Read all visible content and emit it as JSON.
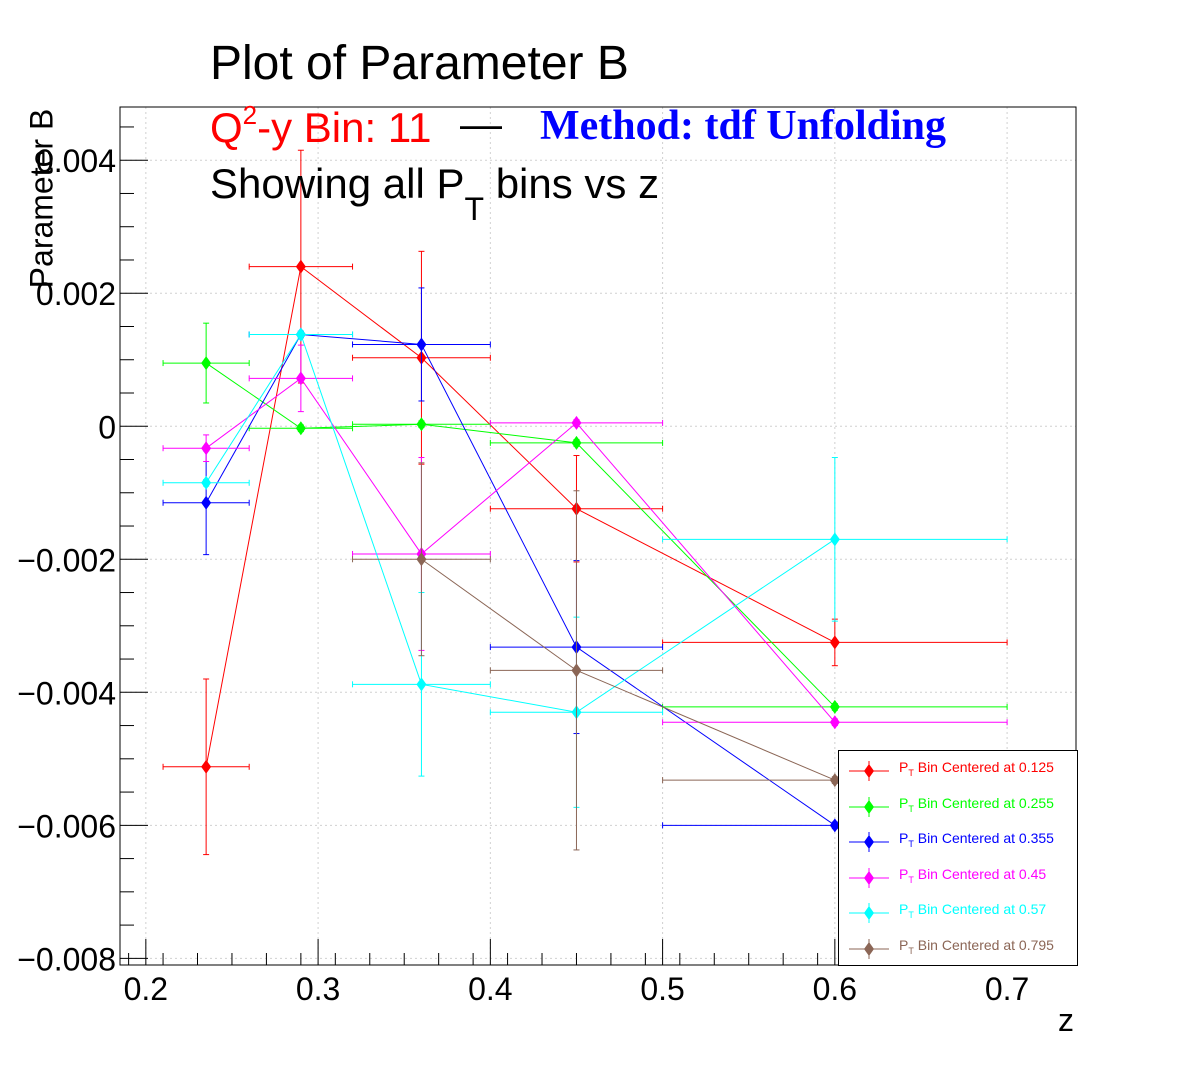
{
  "chart_data": {
    "type": "scatter",
    "title": "Plot of Parameter B",
    "subtitle_bin": "Q2-y Bin: 11",
    "subtitle_bin_parts": {
      "pre": "Q",
      "sup": "2",
      "post": "-y Bin: 11"
    },
    "subtitle_dash": "—",
    "subtitle_method": "Method: tdf Unfolding",
    "subtitle_line2": {
      "pre": "Showing all P",
      "sub": "T",
      "post": " bins vs z"
    },
    "xlabel": "z",
    "ylabel": "Parameter B",
    "xlim": [
      0.185,
      0.74
    ],
    "ylim": [
      -0.0081,
      0.0048
    ],
    "xticks": [
      0.2,
      0.3,
      0.4,
      0.5,
      0.6,
      0.7
    ],
    "xtick_labels": [
      "0.2",
      "0.3",
      "0.4",
      "0.5",
      "0.6",
      "0.7"
    ],
    "yticks": [
      -0.008,
      -0.006,
      -0.004,
      -0.002,
      0,
      0.002,
      0.004
    ],
    "ytick_labels": [
      "−0.008",
      "−0.006",
      "−0.004",
      "−0.002",
      "0",
      "0.002",
      "0.004"
    ],
    "grid": true,
    "legend_position": "bottom-right",
    "series": [
      {
        "name": "P_T Bin Centered at 0.125",
        "legend_value": "0.125",
        "color": "#ff0000",
        "points": [
          {
            "x": 0.235,
            "y": -0.00512,
            "xerr": [
              0.025,
              0.025
            ],
            "yerr": 0.00132
          },
          {
            "x": 0.29,
            "y": 0.0024,
            "xerr": [
              0.03,
              0.03
            ],
            "yerr": 0.00175
          },
          {
            "x": 0.36,
            "y": 0.00103,
            "xerr": [
              0.04,
              0.04
            ],
            "yerr": 0.0016
          },
          {
            "x": 0.45,
            "y": -0.00124,
            "xerr": [
              0.05,
              0.05
            ],
            "yerr": 0.0008
          },
          {
            "x": 0.6,
            "y": -0.00325,
            "xerr": [
              0.1,
              0.1
            ],
            "yerr": 0.00035
          }
        ]
      },
      {
        "name": "P_T Bin Centered at 0.255",
        "legend_value": "0.255",
        "color": "#00ff00",
        "points": [
          {
            "x": 0.235,
            "y": 0.00095,
            "xerr": [
              0.025,
              0.025
            ],
            "yerr": 0.0006
          },
          {
            "x": 0.29,
            "y": -3e-05,
            "xerr": [
              0.03,
              0.03
            ],
            "yerr": 5e-05
          },
          {
            "x": 0.36,
            "y": 3e-05,
            "xerr": [
              0.04,
              0.04
            ],
            "yerr": 5e-05
          },
          {
            "x": 0.45,
            "y": -0.00025,
            "xerr": [
              0.05,
              0.05
            ],
            "yerr": 5e-05
          },
          {
            "x": 0.6,
            "y": -0.00422,
            "xerr": [
              0.1,
              0.1
            ],
            "yerr": 5e-05
          }
        ]
      },
      {
        "name": "P_T Bin Centered at 0.355",
        "legend_value": "0.355",
        "color": "#0000ff",
        "points": [
          {
            "x": 0.235,
            "y": -0.00115,
            "xerr": [
              0.025,
              0.025
            ],
            "yerr": 0.00078
          },
          {
            "x": 0.29,
            "y": 0.00138,
            "xerr": [
              0.03,
              0.03
            ],
            "yerr": 5e-05
          },
          {
            "x": 0.36,
            "y": 0.00123,
            "xerr": [
              0.04,
              0.04
            ],
            "yerr": 0.00085
          },
          {
            "x": 0.45,
            "y": -0.00332,
            "xerr": [
              0.05,
              0.05
            ],
            "yerr": 0.0013
          },
          {
            "x": 0.6,
            "y": -0.006,
            "xerr": [
              0.1,
              0.1
            ],
            "yerr": 5e-05
          }
        ]
      },
      {
        "name": "P_T Bin Centered at 0.45",
        "legend_value": "0.45",
        "color": "#ff00ff",
        "points": [
          {
            "x": 0.235,
            "y": -0.00033,
            "xerr": [
              0.025,
              0.025
            ],
            "yerr": 0.0002
          },
          {
            "x": 0.29,
            "y": 0.00072,
            "xerr": [
              0.03,
              0.03
            ],
            "yerr": 0.0005
          },
          {
            "x": 0.36,
            "y": -0.00192,
            "xerr": [
              0.04,
              0.04
            ],
            "yerr": 0.00145
          },
          {
            "x": 0.45,
            "y": 5e-05,
            "xerr": [
              0.05,
              0.05
            ],
            "yerr": 5e-05
          },
          {
            "x": 0.6,
            "y": -0.00445,
            "xerr": [
              0.1,
              0.1
            ],
            "yerr": 5e-05
          }
        ]
      },
      {
        "name": "P_T Bin Centered at 0.57",
        "legend_value": "0.57",
        "color": "#00ffff",
        "points": [
          {
            "x": 0.235,
            "y": -0.00085,
            "xerr": [
              0.025,
              0.025
            ],
            "yerr": 5e-05
          },
          {
            "x": 0.29,
            "y": 0.00138,
            "xerr": [
              0.03,
              0.03
            ],
            "yerr": 5e-05
          },
          {
            "x": 0.36,
            "y": -0.00388,
            "xerr": [
              0.04,
              0.04
            ],
            "yerr": 0.00138
          },
          {
            "x": 0.45,
            "y": -0.0043,
            "xerr": [
              0.05,
              0.05
            ],
            "yerr": 0.00143
          },
          {
            "x": 0.6,
            "y": -0.0017,
            "xerr": [
              0.1,
              0.1
            ],
            "yerr": 0.00123
          }
        ]
      },
      {
        "name": "P_T Bin Centered at 0.795",
        "legend_value": "0.795",
        "color": "#8b6656",
        "points": [
          {
            "x": 0.36,
            "y": -0.002,
            "xerr": [
              0.04,
              0.04
            ],
            "yerr": 0.00145
          },
          {
            "x": 0.45,
            "y": -0.00367,
            "xerr": [
              0.05,
              0.05
            ],
            "yerr": 0.0027
          },
          {
            "x": 0.6,
            "y": -0.00532,
            "xerr": [
              0.1,
              0.1
            ],
            "yerr": 5e-05
          }
        ]
      }
    ],
    "legend_prefix": {
      "pre": "P",
      "sub": "T",
      "post": " Bin Centered at "
    }
  }
}
